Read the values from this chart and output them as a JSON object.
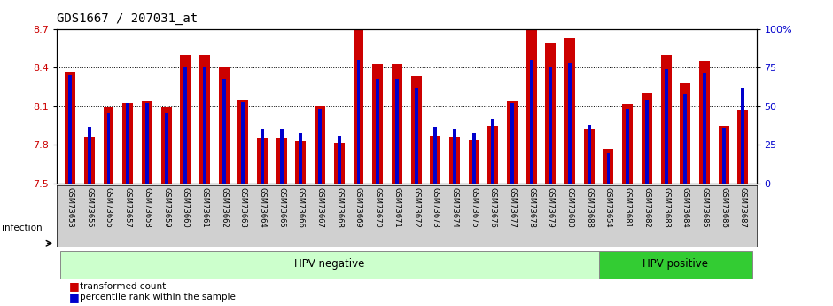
{
  "title": "GDS1667 / 207031_at",
  "samples": [
    "GSM73653",
    "GSM73655",
    "GSM73656",
    "GSM73657",
    "GSM73658",
    "GSM73659",
    "GSM73660",
    "GSM73661",
    "GSM73662",
    "GSM73663",
    "GSM73664",
    "GSM73665",
    "GSM73666",
    "GSM73667",
    "GSM73668",
    "GSM73669",
    "GSM73670",
    "GSM73671",
    "GSM73672",
    "GSM73673",
    "GSM73674",
    "GSM73675",
    "GSM73676",
    "GSM73677",
    "GSM73678",
    "GSM73679",
    "GSM73680",
    "GSM73688",
    "GSM73654",
    "GSM73681",
    "GSM73682",
    "GSM73683",
    "GSM73684",
    "GSM73685",
    "GSM73686",
    "GSM73687"
  ],
  "red_values": [
    8.37,
    7.86,
    8.09,
    8.13,
    8.14,
    8.09,
    8.5,
    8.5,
    8.41,
    8.15,
    7.85,
    7.85,
    7.83,
    8.1,
    7.82,
    8.69,
    8.43,
    8.43,
    8.33,
    7.87,
    7.86,
    7.84,
    7.95,
    8.14,
    8.69,
    8.59,
    8.63,
    7.93,
    7.77,
    8.12,
    8.2,
    8.5,
    8.28,
    8.45,
    7.95,
    8.07
  ],
  "blue_values": [
    70,
    37,
    46,
    52,
    52,
    46,
    76,
    76,
    68,
    53,
    35,
    35,
    33,
    48,
    31,
    80,
    68,
    68,
    62,
    37,
    35,
    33,
    42,
    52,
    80,
    76,
    78,
    38,
    20,
    48,
    54,
    74,
    58,
    72,
    36,
    62
  ],
  "ylim_left": [
    7.5,
    8.7
  ],
  "ylim_right": [
    0,
    100
  ],
  "yticks_left": [
    7.5,
    7.8,
    8.1,
    8.4,
    8.7
  ],
  "yticks_right": [
    0,
    25,
    50,
    75,
    100
  ],
  "bar_color": "#cc0000",
  "blue_color": "#0000cc",
  "bar_width": 0.55,
  "blue_bar_width": 0.18,
  "hpv_neg_count": 28,
  "hpv_neg_label": "HPV negative",
  "hpv_pos_label": "HPV positive",
  "hpv_neg_color": "#ccffcc",
  "hpv_pos_color": "#33cc33",
  "infection_label": "infection",
  "legend_red": "transformed count",
  "legend_blue": "percentile rank within the sample",
  "tick_label_color_left": "#cc0000",
  "tick_label_color_right": "#0000cc",
  "xlabel_bg_color": "#d0d0d0"
}
